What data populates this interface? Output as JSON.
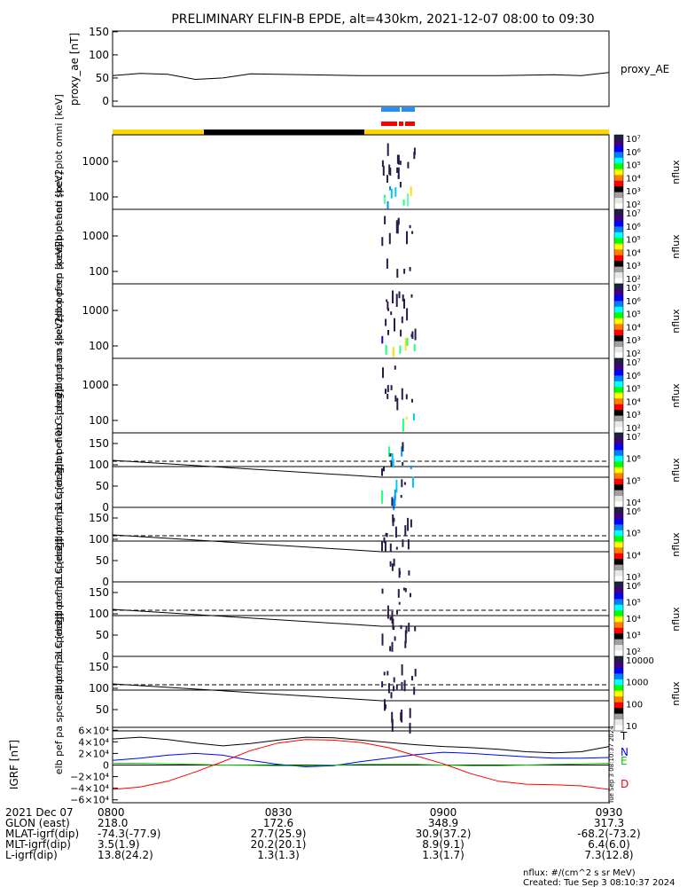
{
  "title": "PRELIMINARY ELFIN-B EPDE, alt=430km, 2021-12-07 08:00 to 09:30",
  "chart_data": [
    {
      "type": "line",
      "ylabel": "proxy_ae [nT]",
      "legend": "proxy_AE",
      "ylim": [
        0,
        150
      ],
      "yticks": [
        "150",
        "100",
        "50",
        "0"
      ],
      "x_minutes": [
        0,
        5,
        10,
        15,
        20,
        25,
        30,
        35,
        40,
        45,
        50,
        55,
        60,
        65,
        70,
        75,
        80,
        85,
        90
      ],
      "values": [
        55,
        60,
        58,
        47,
        50,
        59,
        58,
        57,
        56,
        55,
        55,
        55,
        55,
        55,
        55,
        56,
        57,
        55,
        62
      ]
    },
    {
      "type": "heatmap",
      "ylabel": "elb pef en spec2plot omni [keV]",
      "yticks": [
        "1000",
        "100"
      ],
      "colorbar_label": "nflux",
      "colorbar_ticks": [
        "10⁷",
        "10⁶",
        "10⁵",
        "10⁴",
        "10³",
        "10²"
      ]
    },
    {
      "type": "heatmap",
      "ylabel": "elb pef en spec2plot anti [keV]",
      "yticks": [
        "1000",
        "100"
      ],
      "colorbar_label": "nflux",
      "colorbar_ticks": [
        "10⁷",
        "10⁶",
        "10⁵",
        "10⁴",
        "10³",
        "10²"
      ]
    },
    {
      "type": "heatmap",
      "ylabel": "elb pef en spec2plot perp [keV]",
      "yticks": [
        "1000",
        "100"
      ],
      "colorbar_label": "nflux",
      "colorbar_ticks": [
        "10⁷",
        "10⁶",
        "10⁵",
        "10⁴",
        "10³",
        "10²"
      ]
    },
    {
      "type": "heatmap",
      "ylabel": "elb pef en spec2plot para [keV]",
      "yticks": [
        "1000",
        "100"
      ],
      "colorbar_label": "nflux",
      "colorbar_ticks": [
        "10⁷",
        "10⁶",
        "10⁵",
        "10⁴",
        "10³",
        "10²"
      ]
    },
    {
      "type": "heatmap",
      "ylabel": "elb pef pa spec2plot ch0LC [deg]",
      "yticks": [
        "150",
        "100",
        "50",
        "0"
      ],
      "colorbar_label": "nflux",
      "colorbar_ticks": [
        "10⁷",
        "10⁶",
        "10⁵",
        "10⁴"
      ]
    },
    {
      "type": "heatmap",
      "ylabel": "elb pef pa spec2plot ch1LC [deg]",
      "yticks": [
        "150",
        "100",
        "50",
        "0"
      ],
      "colorbar_label": "nflux",
      "colorbar_ticks": [
        "10⁶",
        "10⁵",
        "10⁴",
        "10³"
      ]
    },
    {
      "type": "heatmap",
      "ylabel": "elb pef pa spec2plot ch2LC [deg]",
      "yticks": [
        "150",
        "100",
        "50",
        "0"
      ],
      "colorbar_label": "nflux",
      "colorbar_ticks": [
        "10⁶",
        "10⁵",
        "10⁴",
        "10³",
        "10²"
      ]
    },
    {
      "type": "heatmap",
      "ylabel": "elb pef pa spec2plot ch3LC [deg]",
      "yticks": [
        "150",
        "100",
        "50"
      ],
      "colorbar_label": "nflux",
      "colorbar_ticks": [
        "10000",
        "1000",
        "100",
        "10"
      ]
    },
    {
      "type": "line",
      "ylabel": "IGRF [nT]",
      "yticks": [
        "6×10⁴",
        "4×10⁴",
        "2×10⁴",
        "0",
        "−2×10⁴",
        "−4×10⁴",
        "−6×10⁴"
      ],
      "ylim": [
        -65000,
        65000
      ],
      "x_minutes": [
        0,
        5,
        10,
        15,
        20,
        25,
        30,
        35,
        40,
        45,
        50,
        55,
        60,
        65,
        70,
        75,
        80,
        85,
        90
      ],
      "series": [
        {
          "name": "T",
          "color": "#000000",
          "values": [
            45000,
            48000,
            44000,
            38000,
            33000,
            37000,
            43000,
            48000,
            47000,
            43000,
            39000,
            35000,
            32000,
            30000,
            27000,
            23000,
            21000,
            23000,
            32000
          ]
        },
        {
          "name": "N",
          "color": "#0000ff",
          "values": [
            8000,
            12000,
            17000,
            20000,
            17000,
            8000,
            1000,
            -3000,
            -1000,
            6000,
            12000,
            18000,
            22000,
            20000,
            17000,
            14000,
            12000,
            12000,
            13000
          ]
        },
        {
          "name": "E",
          "color": "#00cc00",
          "values": [
            3000,
            3000,
            2000,
            1000,
            0,
            -500,
            -1000,
            -1000,
            0,
            1000,
            1000,
            1000,
            0,
            -1000,
            -1000,
            0,
            1000,
            2000,
            3000
          ]
        },
        {
          "name": "D",
          "color": "#ff0000",
          "values": [
            -42000,
            -38000,
            -28000,
            -12000,
            6000,
            25000,
            38000,
            44000,
            43000,
            39000,
            30000,
            16000,
            2000,
            -15000,
            -28000,
            -33000,
            -34000,
            -36000,
            -42000
          ]
        }
      ]
    }
  ],
  "colorbar_ticks": [
    "10⁷",
    "10⁶",
    "10⁵",
    "10⁴",
    "10³",
    "10²"
  ],
  "footer": {
    "rows": [
      {
        "label": "2021 Dec 07",
        "v0800": "0800",
        "v0830": "0830",
        "v0900": "0900",
        "v0930": "0930"
      },
      {
        "label": "GLON (east)",
        "v0800": "218.0",
        "v0830": "172.6",
        "v0900": "348.9",
        "v0930": "317.3"
      },
      {
        "label": "MLAT-igrf(dip)",
        "v0800": "-74.3(-77.9)",
        "v0830": "27.7(25.9)",
        "v0900": "30.9(37.2)",
        "v0930": "-68.2(-73.2)"
      },
      {
        "label": "MLT-igrf(dip)",
        "v0800": "3.5(1.9)",
        "v0830": "20.2(20.1)",
        "v0900": "8.9(9.1)",
        "v0930": "6.4(6.0)"
      },
      {
        "label": "L-igrf(dip)",
        "v0800": "13.8(24.2)",
        "v0830": "1.3(1.3)",
        "v0900": "1.3(1.7)",
        "v0930": "7.3(12.8)"
      }
    ],
    "units": "nflux: #/(cm^2 s sr MeV)",
    "created": "Created: Tue Sep  3 08:10:37 2024",
    "side_stamp": "Tue Sep  3 08:10:37 2024"
  }
}
